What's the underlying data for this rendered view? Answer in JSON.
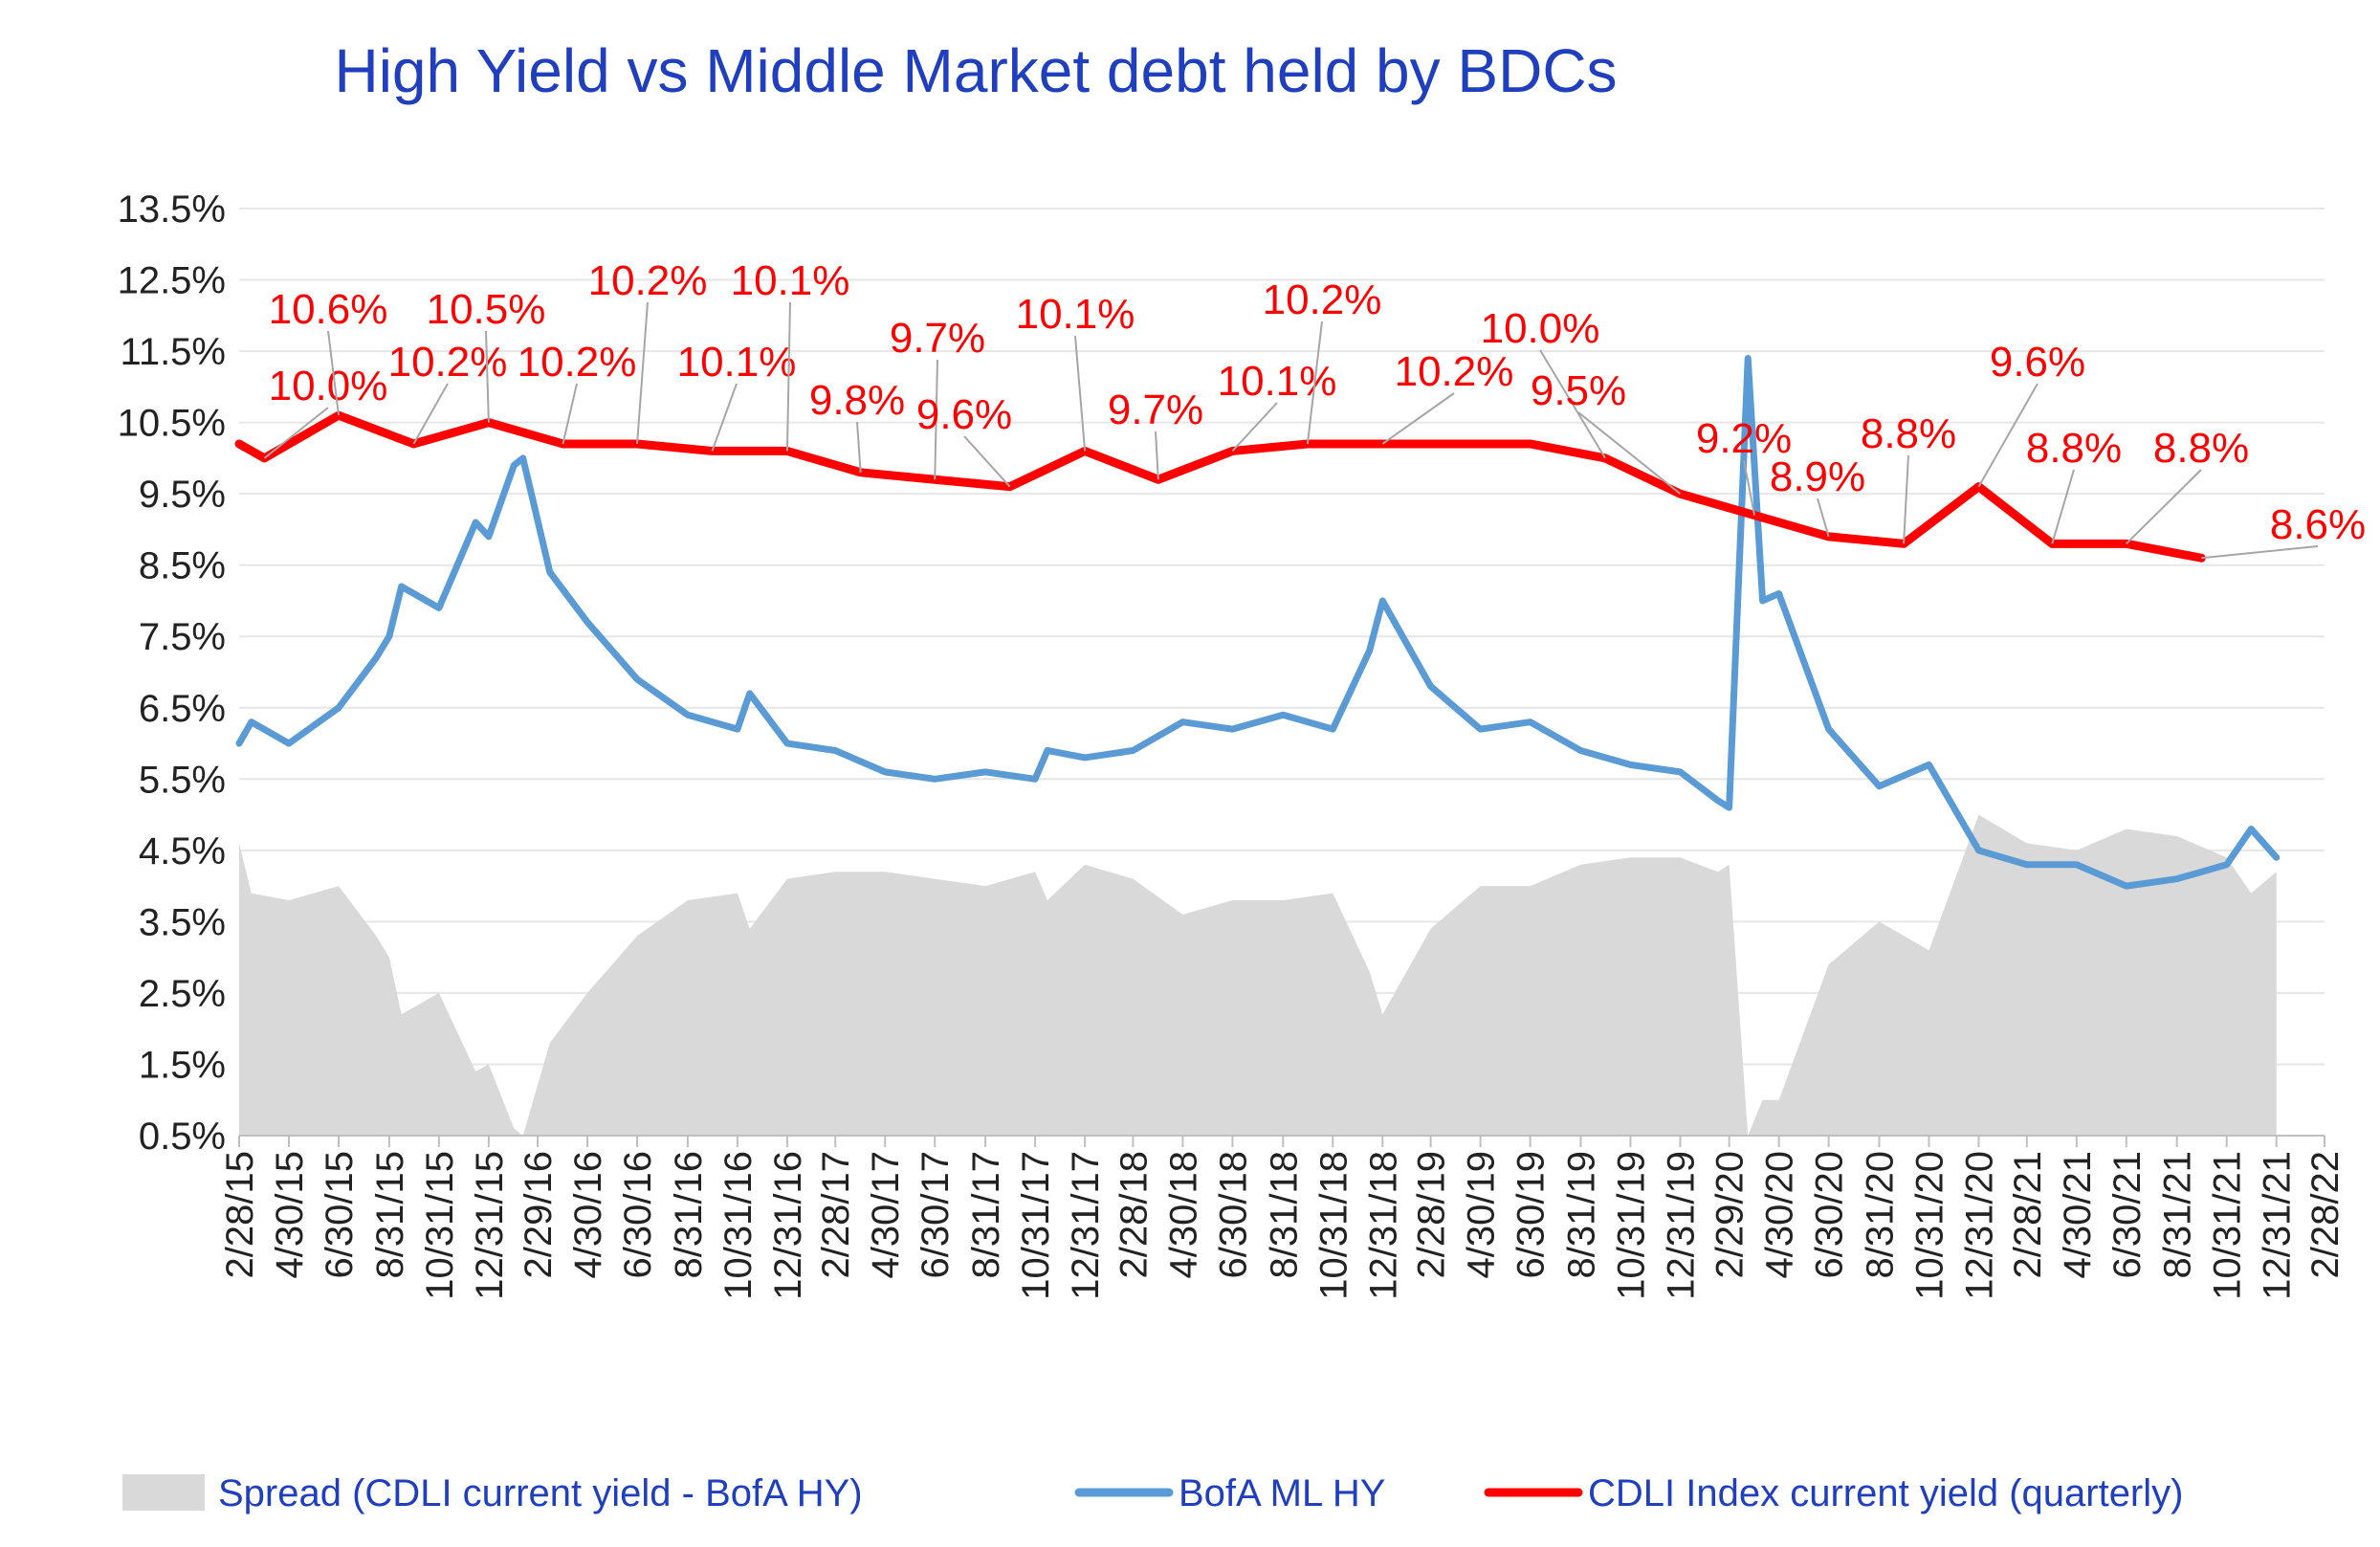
{
  "title": "High Yield  vs  Middle Market debt held by BDCs",
  "colors": {
    "title": "#1f3fbf",
    "spread_fill": "#d9d9d9",
    "hy_line": "#5b9bd5",
    "cdli_line": "#ff0000",
    "grid": "#e6e6e6",
    "label": "#ff0000",
    "leader": "#a6a6a6"
  },
  "legend": [
    {
      "key": "spread",
      "label": "Spread (CDLI current yield - BofA HY)"
    },
    {
      "key": "hy",
      "label": "BofA ML HY"
    },
    {
      "key": "cdli",
      "label": "CDLI Index current yield (quarterly)"
    }
  ],
  "chart_data": {
    "type": "line",
    "title": "High Yield  vs  Middle Market debt held by BDCs",
    "ylim": [
      0.5,
      13.5
    ],
    "yticks": [
      "13.5%",
      "12.5%",
      "11.5%",
      "10.5%",
      "9.5%",
      "8.5%",
      "7.5%",
      "6.5%",
      "5.5%",
      "4.5%",
      "3.5%",
      "2.5%",
      "1.5%",
      "0.5%"
    ],
    "x_tick_labels": [
      "2/28/15",
      "4/30/15",
      "6/30/15",
      "8/31/15",
      "10/31/15",
      "12/31/15",
      "2/29/16",
      "4/30/16",
      "6/30/16",
      "8/31/16",
      "10/31/16",
      "12/31/16",
      "2/28/17",
      "4/30/17",
      "6/30/17",
      "8/31/17",
      "10/31/17",
      "12/31/17",
      "2/28/18",
      "4/30/18",
      "6/30/18",
      "8/31/18",
      "10/31/18",
      "12/31/18",
      "2/28/19",
      "4/30/19",
      "6/30/19",
      "8/31/19",
      "10/31/19",
      "12/31/19",
      "2/29/20",
      "4/30/20",
      "6/30/20",
      "8/31/20",
      "10/31/20",
      "12/31/20",
      "2/28/21",
      "4/30/21",
      "6/30/21",
      "8/31/21",
      "10/31/21",
      "12/31/21",
      "2/28/22"
    ],
    "grid": true,
    "legend_position": "bottom",
    "cdli_series": {
      "name": "CDLI Index current yield (quarterly)",
      "x": [
        "2/28/15",
        "3/31/15",
        "6/30/15",
        "9/30/15",
        "12/31/15",
        "3/31/16",
        "6/30/16",
        "9/30/16",
        "12/31/16",
        "3/31/17",
        "6/30/17",
        "9/30/17",
        "12/31/17",
        "3/31/18",
        "6/30/18",
        "9/30/18",
        "12/31/18",
        "3/31/19",
        "6/30/19",
        "9/30/19",
        "12/31/19",
        "3/31/20",
        "6/30/20",
        "9/30/20",
        "12/31/20",
        "3/31/21",
        "6/30/21",
        "9/30/21"
      ],
      "values": [
        10.2,
        10.0,
        10.6,
        10.2,
        10.5,
        10.2,
        10.2,
        10.1,
        10.1,
        9.8,
        9.7,
        9.6,
        10.1,
        9.7,
        10.1,
        10.2,
        10.2,
        10.2,
        10.2,
        10.0,
        9.5,
        9.2,
        8.9,
        8.8,
        9.6,
        8.8,
        8.8,
        8.6
      ],
      "labels": [
        "",
        "10.0%",
        "10.6%",
        "10.2%",
        "10.5%",
        "10.2%",
        "10.2%",
        "10.1%",
        "10.1%",
        "9.8%",
        "9.7%",
        "9.6%",
        "10.1%",
        "9.7%",
        "10.1%",
        "10.2%",
        "10.2%",
        "",
        "",
        "10.0%",
        "9.5%",
        "9.2%",
        "8.9%",
        "8.8%",
        "9.6%",
        "8.8%",
        "8.8%",
        "8.6%"
      ]
    },
    "hy_series": {
      "name": "BofA ML HY",
      "x": [
        "2/28/15",
        "3/15/15",
        "4/30/15",
        "6/30/15",
        "8/15/15",
        "8/31/15",
        "9/15/15",
        "10/31/15",
        "12/15/15",
        "12/31/15",
        "1/31/16",
        "2/11/16",
        "3/15/16",
        "4/30/16",
        "6/30/16",
        "8/31/16",
        "10/31/16",
        "11/15/16",
        "12/31/16",
        "2/28/17",
        "4/30/17",
        "6/30/17",
        "8/31/17",
        "10/31/17",
        "11/15/17",
        "12/31/17",
        "2/28/18",
        "4/30/18",
        "6/30/18",
        "8/31/18",
        "10/31/18",
        "12/15/18",
        "12/31/18",
        "2/28/19",
        "4/30/19",
        "6/30/19",
        "8/31/19",
        "10/31/19",
        "12/31/19",
        "2/15/20",
        "2/29/20",
        "3/23/20",
        "4/10/20",
        "4/30/20",
        "6/30/20",
        "8/31/20",
        "10/31/20",
        "12/31/20",
        "2/28/21",
        "4/30/21",
        "6/30/21",
        "8/31/21",
        "10/31/21",
        "11/30/21",
        "12/31/21"
      ],
      "values": [
        6.0,
        6.3,
        6.0,
        6.5,
        7.2,
        7.5,
        8.2,
        7.9,
        9.1,
        8.9,
        9.9,
        10.0,
        8.4,
        7.7,
        6.9,
        6.4,
        6.2,
        6.7,
        6.0,
        5.9,
        5.6,
        5.5,
        5.6,
        5.5,
        5.9,
        5.8,
        5.9,
        6.3,
        6.2,
        6.4,
        6.2,
        7.3,
        8.0,
        6.8,
        6.2,
        6.3,
        5.9,
        5.7,
        5.6,
        5.2,
        5.1,
        11.4,
        8.0,
        8.1,
        6.2,
        5.4,
        5.7,
        4.5,
        4.3,
        4.3,
        4.0,
        4.1,
        4.3,
        4.8,
        4.4
      ]
    },
    "spread_series": {
      "name": "Spread (CDLI current yield - BofA HY)",
      "x": [
        "2/28/15",
        "3/15/15",
        "4/30/15",
        "6/30/15",
        "8/15/15",
        "8/31/15",
        "9/15/15",
        "10/31/15",
        "12/15/15",
        "12/31/15",
        "1/31/16",
        "2/11/16",
        "3/15/16",
        "4/30/16",
        "6/30/16",
        "8/31/16",
        "10/31/16",
        "11/15/16",
        "12/31/16",
        "2/28/17",
        "4/30/17",
        "6/30/17",
        "8/31/17",
        "10/31/17",
        "11/15/17",
        "12/31/17",
        "2/28/18",
        "4/30/18",
        "6/30/18",
        "8/31/18",
        "10/31/18",
        "12/15/18",
        "12/31/18",
        "2/28/19",
        "4/30/19",
        "6/30/19",
        "8/31/19",
        "10/31/19",
        "12/31/19",
        "2/15/20",
        "2/29/20",
        "3/23/20",
        "4/10/20",
        "4/30/20",
        "6/30/20",
        "8/31/20",
        "10/31/20",
        "12/31/20",
        "2/28/21",
        "4/30/21",
        "6/30/21",
        "8/31/21",
        "10/31/21",
        "11/30/21",
        "12/31/21"
      ],
      "values": [
        4.6,
        3.9,
        3.8,
        4.0,
        3.3,
        3.0,
        2.2,
        2.5,
        1.4,
        1.5,
        0.6,
        0.5,
        1.8,
        2.5,
        3.3,
        3.8,
        3.9,
        3.4,
        4.1,
        4.2,
        4.2,
        4.1,
        4.0,
        4.2,
        3.8,
        4.3,
        4.1,
        3.6,
        3.8,
        3.8,
        3.9,
        2.8,
        2.2,
        3.4,
        4.0,
        4.0,
        4.3,
        4.4,
        4.4,
        4.2,
        4.3,
        0.5,
        1.0,
        1.0,
        2.9,
        3.5,
        3.1,
        5.0,
        4.6,
        4.5,
        4.8,
        4.7,
        4.4,
        3.9,
        4.2
      ]
    }
  }
}
